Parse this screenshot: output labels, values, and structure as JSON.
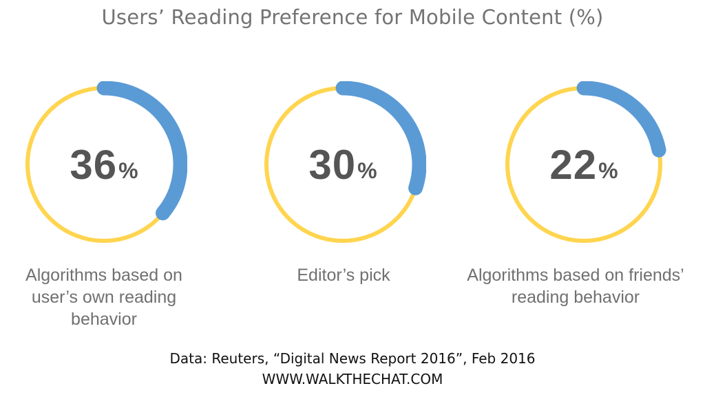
{
  "chart_data": {
    "type": "donut",
    "title": "Users’ Reading Preference for Mobile Content (%)",
    "unit": "%",
    "max": 100,
    "items": [
      {
        "value": 36,
        "label_lines": [
          "Algorithms based on",
          "user’s own reading",
          "behavior"
        ]
      },
      {
        "value": 30,
        "label_lines": [
          "Editor’s pick"
        ]
      },
      {
        "value": 22,
        "label_lines": [
          "Algorithms based on friends’",
          "reading behavior"
        ]
      }
    ],
    "colors": {
      "value_arc": "#5b9bd5",
      "remainder_ring": "#ffd550"
    }
  },
  "footer": {
    "source": "Data: Reuters, “Digital News Report 2016”,  Feb 2016",
    "site": "WWW.WALKTHECHAT.COM"
  }
}
